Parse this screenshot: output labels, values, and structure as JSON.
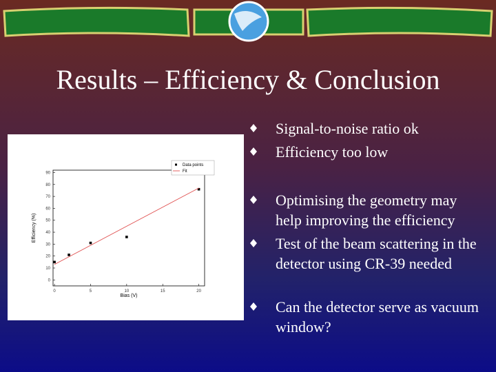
{
  "title": "Results – Efficiency & Conclusion",
  "bullets": [
    "Signal-to-noise ratio ok",
    "Efficiency too low",
    "Optimising the geometry may help improving the efficiency",
    "Test of the beam scattering in the detector using CR-39 needed",
    "Can the detector serve as vacuum window?"
  ],
  "chart_data": {
    "type": "scatter",
    "xlabel": "Bias (V)",
    "ylabel": "Efficiency (%)",
    "series": [
      {
        "name": "Data points",
        "color": "#000000",
        "mode": "markers",
        "x": [
          0,
          2,
          5,
          10,
          20
        ],
        "values": [
          15,
          21,
          31,
          36,
          76
        ]
      },
      {
        "name": "Fit",
        "color": "#e05050",
        "mode": "line",
        "x": [
          0,
          20
        ],
        "values": [
          13,
          77
        ]
      }
    ],
    "xlim": [
      -0.2,
      20.8
    ],
    "ylim": [
      -5,
      92
    ],
    "xticks": [
      0,
      5,
      10,
      15,
      20
    ],
    "yticks": [
      0,
      10,
      20,
      30,
      40,
      50,
      60,
      70,
      80,
      90
    ],
    "legend": "upper-right"
  }
}
